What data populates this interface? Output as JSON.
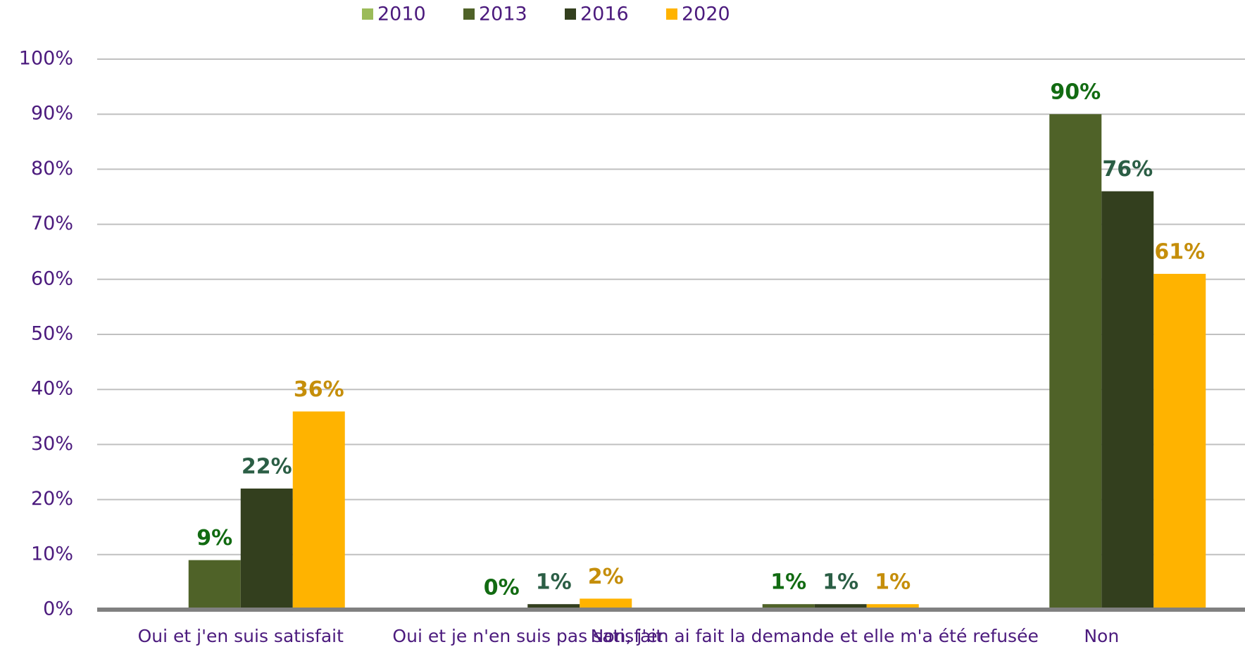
{
  "chart_data": {
    "type": "bar",
    "categories": [
      "Oui et j'en suis satisfait",
      "Oui et je n'en suis pas satisfait",
      "Non, j'en ai fait la demande et elle m'a été refusée",
      "Non"
    ],
    "series": [
      {
        "name": "2010",
        "color": "#9bbb59",
        "values": [
          null,
          null,
          null,
          null
        ]
      },
      {
        "name": "2013",
        "color": "#4f6228",
        "label_color": "#126b12",
        "values": [
          9,
          0,
          1,
          90
        ],
        "value_labels": [
          "9%",
          "0%",
          "1%",
          "90%"
        ]
      },
      {
        "name": "2016",
        "color": "#333f1e",
        "label_color": "#2b5e45",
        "values": [
          22,
          1,
          1,
          76
        ],
        "value_labels": [
          "22%",
          "1%",
          "1%",
          "76%"
        ]
      },
      {
        "name": "2020",
        "color": "#ffb300",
        "label_color": "#c58e0a",
        "values": [
          36,
          2,
          1,
          61
        ],
        "value_labels": [
          "36%",
          "2%",
          "1%",
          "61%"
        ]
      }
    ],
    "ylim": [
      0,
      100
    ],
    "yticks": [
      {
        "value": 0,
        "label": "0%"
      },
      {
        "value": 10,
        "label": "10%"
      },
      {
        "value": 20,
        "label": "20%"
      },
      {
        "value": 30,
        "label": "30%"
      },
      {
        "value": 40,
        "label": "40%"
      },
      {
        "value": 50,
        "label": "50%"
      },
      {
        "value": 60,
        "label": "60%"
      },
      {
        "value": 70,
        "label": "70%"
      },
      {
        "value": 80,
        "label": "80%"
      },
      {
        "value": 90,
        "label": "90%"
      },
      {
        "value": 100,
        "label": "100%"
      }
    ],
    "grid": true,
    "legend": "top"
  }
}
